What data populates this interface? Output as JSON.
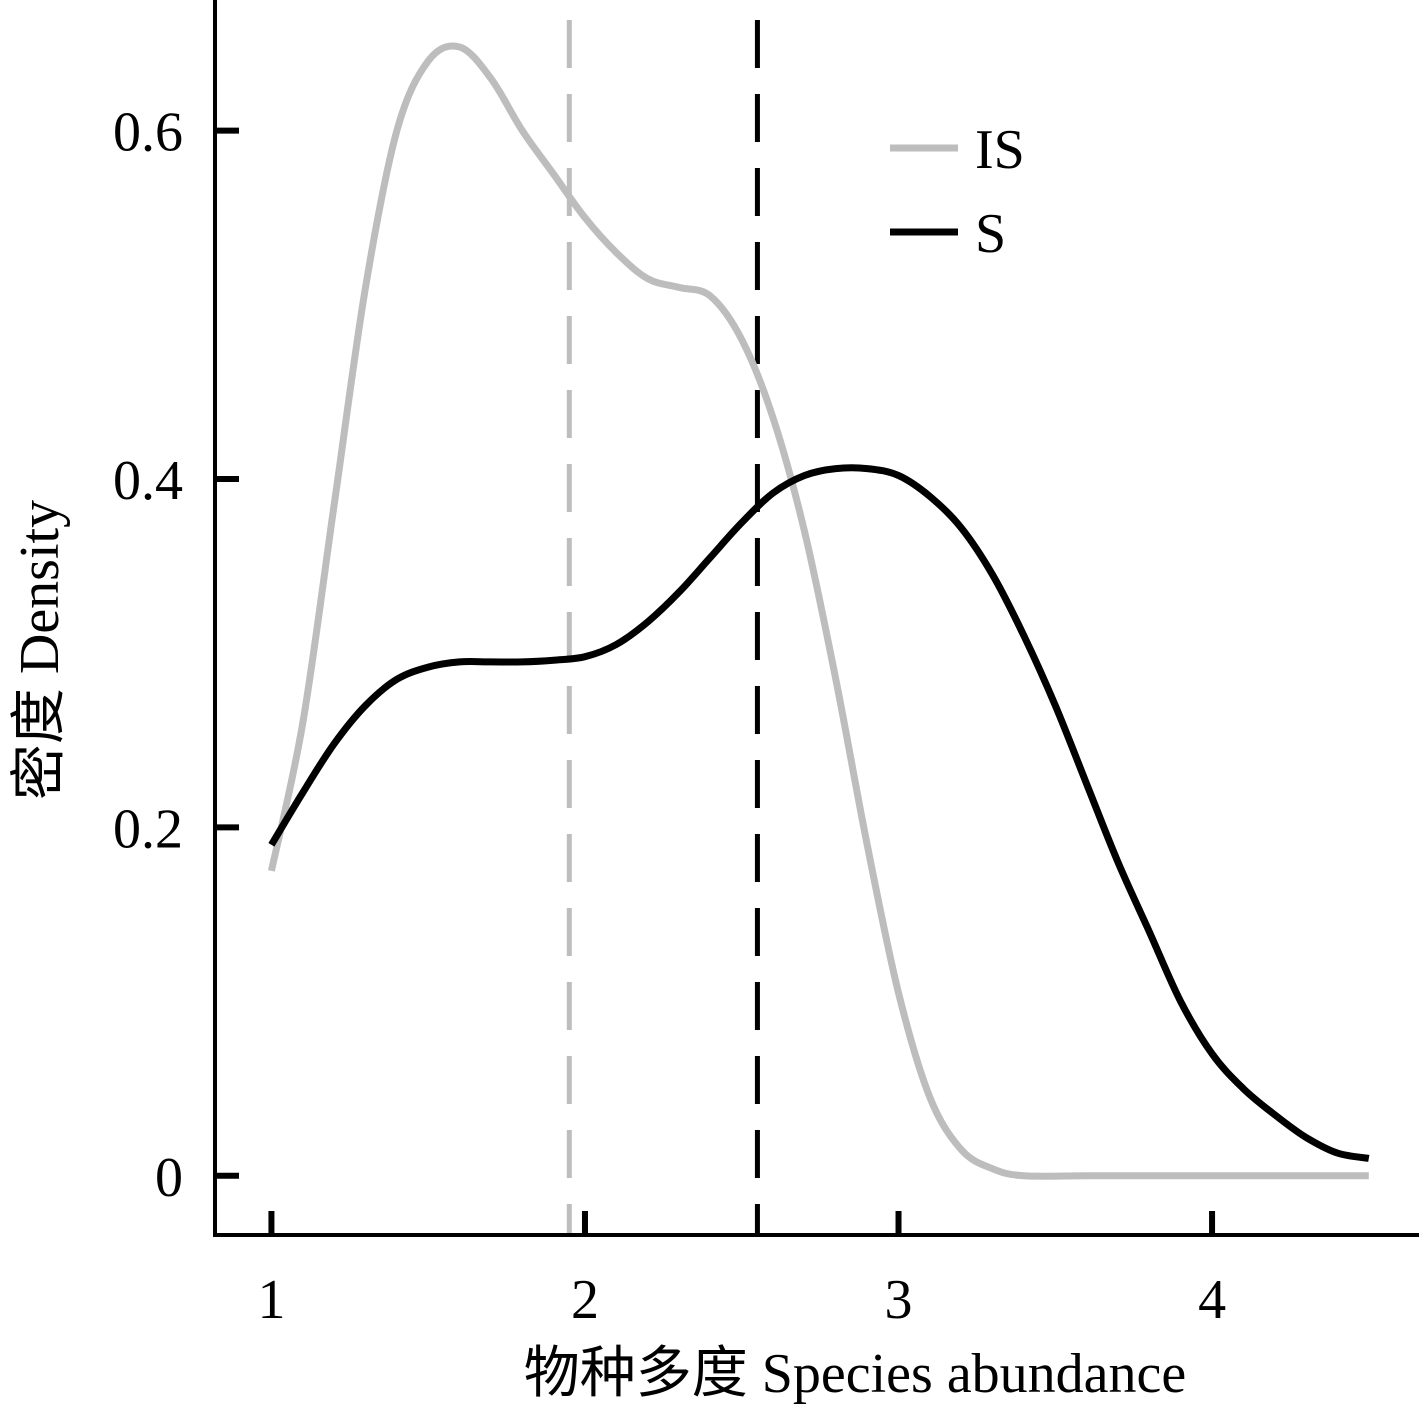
{
  "chart_data": {
    "type": "line",
    "xlabel": "物种多度 Species abundance",
    "ylabel": "密度 Density",
    "xlim": [
      0.82,
      4.66
    ],
    "ylim": [
      -0.034,
      0.675
    ],
    "x_ticks": [
      1,
      2,
      3,
      4
    ],
    "x_tick_labels": [
      "1",
      "2",
      "3",
      "4"
    ],
    "y_ticks": [
      0,
      0.2,
      0.4,
      0.6
    ],
    "y_tick_labels": [
      "0",
      "0.2",
      "0.4",
      "0.6"
    ],
    "grid": false,
    "legend_position": "top-right",
    "series": [
      {
        "name": "IS",
        "color": "#bdbdbd",
        "mean_line_x": 1.95,
        "x": [
          1.0,
          1.1,
          1.2,
          1.3,
          1.4,
          1.5,
          1.6,
          1.7,
          1.8,
          1.9,
          2.0,
          2.1,
          2.2,
          2.3,
          2.4,
          2.5,
          2.6,
          2.7,
          2.8,
          2.9,
          3.0,
          3.1,
          3.2,
          3.3,
          3.4,
          3.6,
          3.8,
          4.0,
          4.2,
          4.5
        ],
        "y": [
          0.175,
          0.26,
          0.385,
          0.51,
          0.6,
          0.64,
          0.648,
          0.63,
          0.6,
          0.575,
          0.55,
          0.53,
          0.515,
          0.51,
          0.505,
          0.48,
          0.435,
          0.37,
          0.285,
          0.19,
          0.105,
          0.045,
          0.015,
          0.004,
          0.0,
          0.0,
          0.0,
          0.0,
          0.0,
          0.0
        ]
      },
      {
        "name": "S",
        "color": "#000000",
        "mean_line_x": 2.55,
        "x": [
          1.0,
          1.1,
          1.2,
          1.3,
          1.4,
          1.5,
          1.6,
          1.7,
          1.8,
          1.9,
          2.0,
          2.1,
          2.2,
          2.3,
          2.4,
          2.5,
          2.6,
          2.7,
          2.8,
          2.9,
          3.0,
          3.1,
          3.2,
          3.3,
          3.4,
          3.5,
          3.6,
          3.7,
          3.8,
          3.9,
          4.0,
          4.1,
          4.2,
          4.3,
          4.4,
          4.5
        ],
        "y": [
          0.19,
          0.22,
          0.248,
          0.27,
          0.285,
          0.292,
          0.295,
          0.295,
          0.295,
          0.296,
          0.298,
          0.305,
          0.318,
          0.335,
          0.355,
          0.375,
          0.392,
          0.402,
          0.406,
          0.406,
          0.402,
          0.39,
          0.372,
          0.345,
          0.31,
          0.27,
          0.225,
          0.18,
          0.14,
          0.1,
          0.07,
          0.05,
          0.035,
          0.022,
          0.013,
          0.01
        ]
      }
    ]
  }
}
